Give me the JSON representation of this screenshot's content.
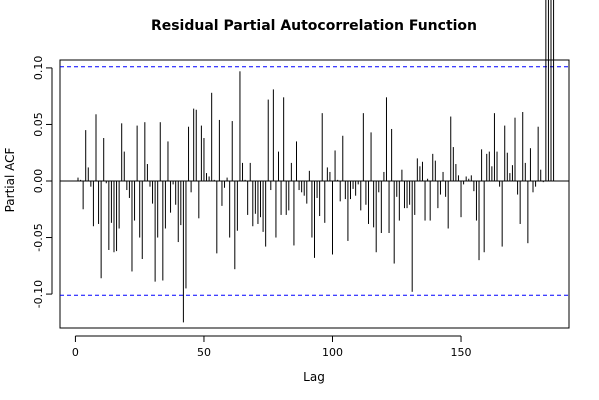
{
  "chart_data": {
    "type": "bar",
    "title": "Residual Partial Autocorrelation Function",
    "xlabel": "Lag",
    "ylabel": "Partial ACF",
    "xlim": [
      -6,
      192
    ],
    "ylim": [
      -0.13,
      0.107
    ],
    "x_ticks": [
      0,
      50,
      100,
      150
    ],
    "y_ticks": [
      -0.1,
      -0.05,
      0.0,
      0.05,
      0.1
    ],
    "y_tick_labels": [
      "-0.10",
      "-0.05",
      "0.00",
      "0.05",
      "0.10"
    ],
    "confidence_bound": 0.101,
    "bound_color": "#0000ff",
    "zero_line": true,
    "lags": [
      1,
      2,
      3,
      4,
      5,
      6,
      7,
      8,
      9,
      10,
      11,
      12,
      13,
      14,
      15,
      16,
      17,
      18,
      19,
      20,
      21,
      22,
      23,
      24,
      25,
      26,
      27,
      28,
      29,
      30,
      31,
      32,
      33,
      34,
      35,
      36,
      37,
      38,
      39,
      40,
      41,
      42,
      43,
      44,
      45,
      46,
      47,
      48,
      49,
      50,
      51,
      52,
      53,
      54,
      55,
      56,
      57,
      58,
      59,
      60,
      61,
      62,
      63,
      64,
      65,
      66,
      67,
      68,
      69,
      70,
      71,
      72,
      73,
      74,
      75,
      76,
      77,
      78,
      79,
      80,
      81,
      82,
      83,
      84,
      85,
      86,
      87,
      88,
      89,
      90,
      91,
      92,
      93,
      94,
      95,
      96,
      97,
      98,
      99,
      100,
      101,
      102,
      103,
      104,
      105,
      106,
      107,
      108,
      109,
      110,
      111,
      112,
      113,
      114,
      115,
      116,
      117,
      118,
      119,
      120,
      121,
      122,
      123,
      124,
      125,
      126,
      127,
      128,
      129,
      130,
      131,
      132,
      133,
      134,
      135,
      136,
      137,
      138,
      139,
      140,
      141,
      142,
      143,
      144,
      145,
      146,
      147,
      148,
      149,
      150,
      151,
      152,
      153,
      154,
      155,
      156,
      157,
      158,
      159,
      160,
      161,
      162,
      163,
      164,
      165,
      166,
      167,
      168,
      169,
      170,
      171,
      172,
      173,
      174,
      175,
      176,
      177,
      178,
      179,
      180,
      181,
      182,
      183,
      184,
      185,
      186
    ],
    "values": [
      0.003,
      0.001,
      -0.025,
      0.045,
      0.012,
      -0.005,
      -0.04,
      0.059,
      -0.038,
      -0.086,
      0.038,
      -0.002,
      -0.061,
      -0.037,
      -0.063,
      -0.062,
      -0.042,
      0.051,
      0.026,
      -0.008,
      -0.015,
      -0.08,
      -0.035,
      0.049,
      -0.05,
      -0.069,
      0.052,
      0.015,
      -0.005,
      -0.02,
      -0.089,
      -0.05,
      0.052,
      -0.088,
      -0.042,
      0.035,
      -0.028,
      -0.003,
      -0.021,
      -0.054,
      -0.039,
      -0.125,
      -0.095,
      0.048,
      -0.01,
      0.064,
      0.063,
      -0.033,
      0.049,
      0.038,
      0.007,
      0.004,
      0.078,
      0.001,
      -0.064,
      0.054,
      -0.022,
      -0.006,
      0.003,
      -0.05,
      0.053,
      -0.078,
      -0.044,
      0.097,
      0.016,
      0.001,
      -0.03,
      0.016,
      -0.04,
      -0.029,
      -0.038,
      -0.032,
      -0.045,
      -0.058,
      0.072,
      -0.008,
      0.081,
      -0.05,
      0.026,
      -0.03,
      0.074,
      -0.03,
      -0.026,
      0.016,
      -0.057,
      0.035,
      -0.008,
      -0.01,
      -0.013,
      -0.02,
      0.009,
      -0.05,
      -0.068,
      -0.015,
      -0.031,
      0.06,
      -0.037,
      0.012,
      0.008,
      -0.065,
      0.027,
      0.001,
      -0.018,
      0.04,
      -0.016,
      -0.053,
      -0.016,
      -0.007,
      -0.013,
      -0.003,
      -0.026,
      0.06,
      -0.021,
      -0.038,
      0.043,
      -0.041,
      -0.063,
      -0.01,
      -0.046,
      0.008,
      0.074,
      -0.046,
      0.046,
      -0.073,
      -0.014,
      -0.035,
      0.01,
      -0.024,
      -0.024,
      -0.021,
      -0.098,
      -0.03,
      0.02,
      0.013,
      0.017,
      -0.035,
      0.002,
      -0.035,
      0.024,
      0.018,
      -0.024,
      -0.012,
      0.008,
      -0.014,
      -0.042,
      0.057,
      0.03,
      0.015,
      0.005,
      -0.032,
      -0.003,
      0.004,
      0.002,
      0.005,
      -0.009,
      -0.035,
      -0.07,
      0.028,
      -0.063,
      0.024,
      0.026,
      0.013,
      0.06,
      0.026,
      -0.005,
      -0.058,
      0.049,
      0.025,
      0.007,
      0.014,
      0.056,
      -0.012,
      -0.038,
      0.061,
      0.016,
      -0.055,
      0.029,
      -0.01,
      -0.005,
      0.048,
      0.01,
      -0.001
    ]
  }
}
